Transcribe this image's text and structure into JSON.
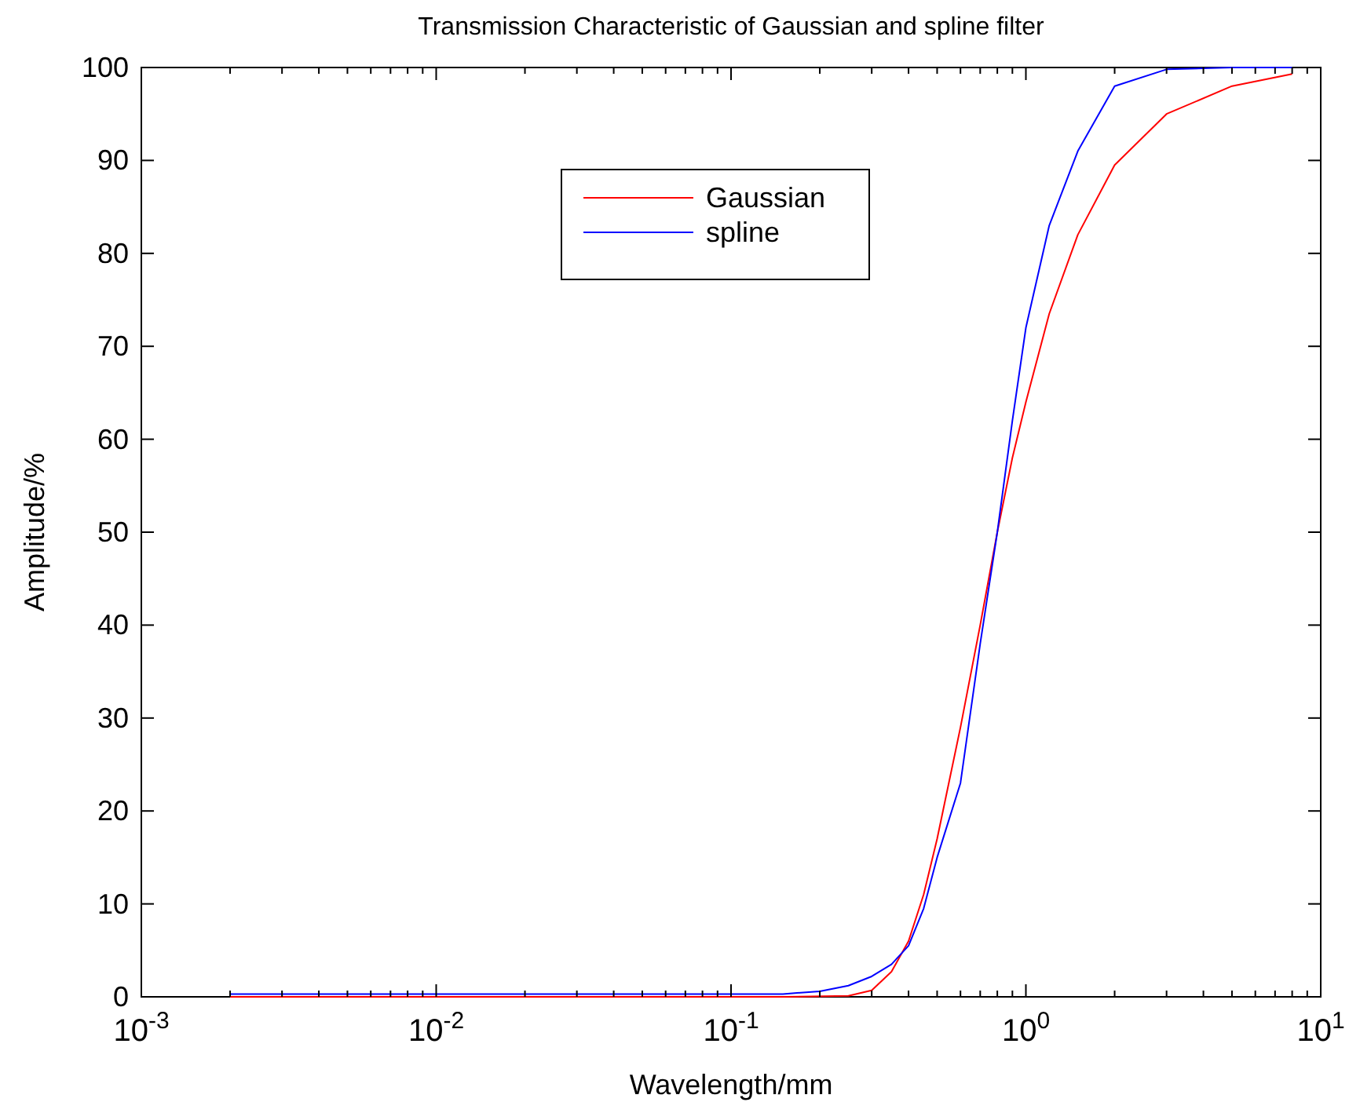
{
  "chart_data": {
    "type": "line",
    "title": "Transmission Characteristic of Gaussian and spline filter",
    "xlabel": "Wavelength/mm",
    "ylabel": "Amplitude/%",
    "log": "x",
    "xlim": [
      0.001,
      10
    ],
    "ylim": [
      0,
      100
    ],
    "xticks": [
      {
        "value": 0.001,
        "label": "10$^{-3}$"
      },
      {
        "value": 0.002,
        "label": null
      },
      {
        "value": 0.003,
        "label": null
      },
      {
        "value": 0.004,
        "label": null
      },
      {
        "value": 0.005,
        "label": null
      },
      {
        "value": 0.006,
        "label": null
      },
      {
        "value": 0.007,
        "label": null
      },
      {
        "value": 0.008,
        "label": null
      },
      {
        "value": 0.009,
        "label": null
      },
      {
        "value": 0.01,
        "label": "10$^{-2}$"
      },
      {
        "value": 0.02,
        "label": null
      },
      {
        "value": 0.03,
        "label": null
      },
      {
        "value": 0.04,
        "label": null
      },
      {
        "value": 0.05,
        "label": null
      },
      {
        "value": 0.06,
        "label": null
      },
      {
        "value": 0.07,
        "label": null
      },
      {
        "value": 0.08,
        "label": null
      },
      {
        "value": 0.09,
        "label": null
      },
      {
        "value": 0.1,
        "label": "10$^{-1}$"
      },
      {
        "value": 0.2,
        "label": null
      },
      {
        "value": 0.3,
        "label": null
      },
      {
        "value": 0.4,
        "label": null
      },
      {
        "value": 0.5,
        "label": null
      },
      {
        "value": 0.6,
        "label": null
      },
      {
        "value": 0.7,
        "label": null
      },
      {
        "value": 0.8,
        "label": null
      },
      {
        "value": 0.9,
        "label": null
      },
      {
        "value": 1,
        "label": "10$^{0}$"
      },
      {
        "value": 2,
        "label": null
      },
      {
        "value": 3,
        "label": null
      },
      {
        "value": 4,
        "label": null
      },
      {
        "value": 5,
        "label": null
      },
      {
        "value": 6,
        "label": null
      },
      {
        "value": 7,
        "label": null
      },
      {
        "value": 8,
        "label": null
      },
      {
        "value": 9,
        "label": null
      },
      {
        "value": 10,
        "label": "10$^{1}$"
      }
    ],
    "yticks": [
      0,
      10,
      20,
      30,
      40,
      50,
      60,
      70,
      80,
      90,
      100
    ],
    "grid": false,
    "legend": "top",
    "marker": "none",
    "line_style": "solid",
    "series": [
      {
        "name": "Gaussian",
        "color": "#ff0000",
        "x": [
          0.002,
          0.01,
          0.1,
          0.15,
          0.25,
          0.3,
          0.35,
          0.4,
          0.45,
          0.5,
          0.6,
          0.7,
          0.8,
          0.9,
          1,
          1.2,
          1.5,
          2,
          3,
          5,
          8
        ],
        "values": [
          0,
          0,
          0,
          0,
          0.1,
          0.7,
          2.7,
          6,
          11,
          17,
          29,
          40,
          50,
          58,
          64,
          73.5,
          82,
          89.5,
          95,
          98,
          99.3
        ]
      },
      {
        "name": "spline",
        "color": "#0000ff",
        "x": [
          0.002,
          0.01,
          0.1,
          0.15,
          0.2,
          0.25,
          0.3,
          0.35,
          0.4,
          0.45,
          0.5,
          0.6,
          0.7,
          0.8,
          0.9,
          1,
          1.2,
          1.5,
          2,
          3,
          5,
          8
        ],
        "values": [
          0.3,
          0.3,
          0.3,
          0.3,
          0.6,
          1.2,
          2.2,
          3.5,
          5.5,
          9.5,
          15,
          23,
          38,
          50,
          62,
          72,
          83,
          91,
          98,
          99.8,
          100,
          100
        ]
      }
    ]
  }
}
